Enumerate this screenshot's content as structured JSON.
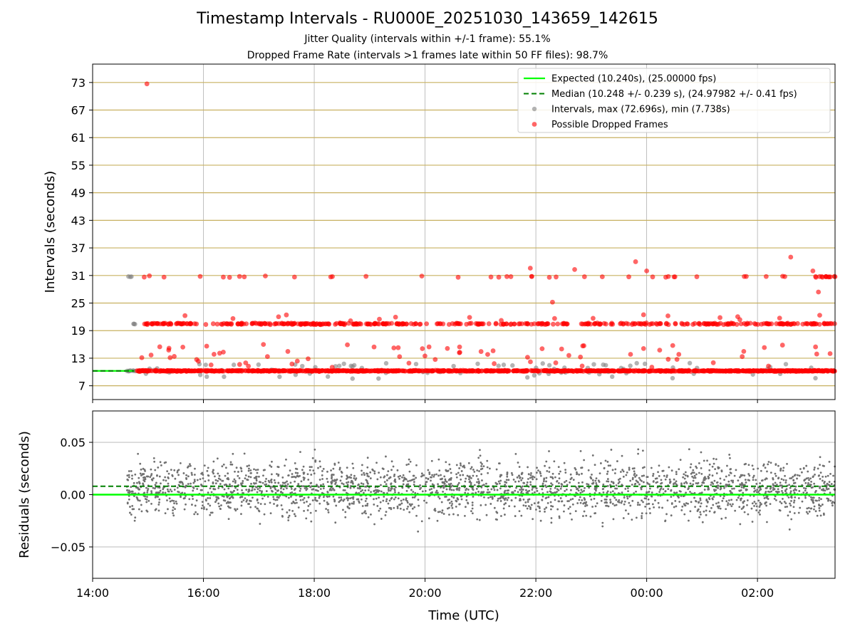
{
  "figure": {
    "title": "Timestamp Intervals - RU000E_20251030_143659_142615",
    "subtitle_1": "Jitter Quality (intervals within +/-1 frame): 55.1%",
    "subtitle_2": "Dropped Frame Rate (intervals >1 frames late within 50 FF files): 98.7%"
  },
  "colors": {
    "expected": "#00ff00",
    "median": "#008000",
    "intervals": "#808080",
    "dropped": "#ff0000",
    "hgrid_top": "#c8b060",
    "grid": "#b0b0b0"
  },
  "chart_data": [
    {
      "type": "scatter",
      "title": "",
      "xlabel": "",
      "ylabel": "Intervals (seconds)",
      "x_unit": "hours since 14:00 UTC",
      "xlim": [
        0,
        13.4
      ],
      "ylim": [
        4,
        77
      ],
      "yticks": [
        7,
        13,
        19,
        25,
        31,
        37,
        43,
        49,
        55,
        61,
        67,
        73
      ],
      "x_tick_labels": [
        "14:00",
        "16:00",
        "18:00",
        "20:00",
        "22:00",
        "00:00",
        "02:00"
      ],
      "x_tick_values": [
        0,
        2,
        4,
        6,
        8,
        10,
        12
      ],
      "grid": true,
      "legend_position": "top-right",
      "legend": [
        "Expected (10.240s), (25.00000 fps)",
        "Median (10.248 +/- 0.239 s), (24.97982 +/- 0.41 fps)",
        "Intervals, max (72.696s), min (7.738s)",
        "Possible Dropped Frames"
      ],
      "expected_value": 10.24,
      "expected_x_range": [
        0,
        0.75
      ],
      "median_value": 10.248,
      "data_x_start": 0.6,
      "series": [
        {
          "name": "Intervals, max (72.696s), min (7.738s)",
          "max": 72.696,
          "min": 7.738,
          "primary_level": 10.24
        },
        {
          "name": "Possible Dropped Frames",
          "levels": [
            10.24,
            20.48,
            30.72
          ],
          "outlier": {
            "x": 0.98,
            "y": 72.696
          }
        }
      ]
    },
    {
      "type": "scatter",
      "title": "",
      "xlabel": "Time (UTC)",
      "ylabel": "Residuals (seconds)",
      "xlim": [
        0,
        13.4
      ],
      "ylim": [
        -0.08,
        0.08
      ],
      "yticks": [
        -0.05,
        0.0,
        0.05
      ],
      "ytick_labels": [
        "−0.05",
        "0.00",
        "0.05"
      ],
      "x_tick_labels": [
        "14:00",
        "16:00",
        "18:00",
        "20:00",
        "22:00",
        "00:00",
        "02:00"
      ],
      "x_tick_values": [
        0,
        2,
        4,
        6,
        8,
        10,
        12
      ],
      "grid": true,
      "expected_value": 0.0,
      "median_value": 0.008,
      "residual_spread": 0.08
    }
  ]
}
